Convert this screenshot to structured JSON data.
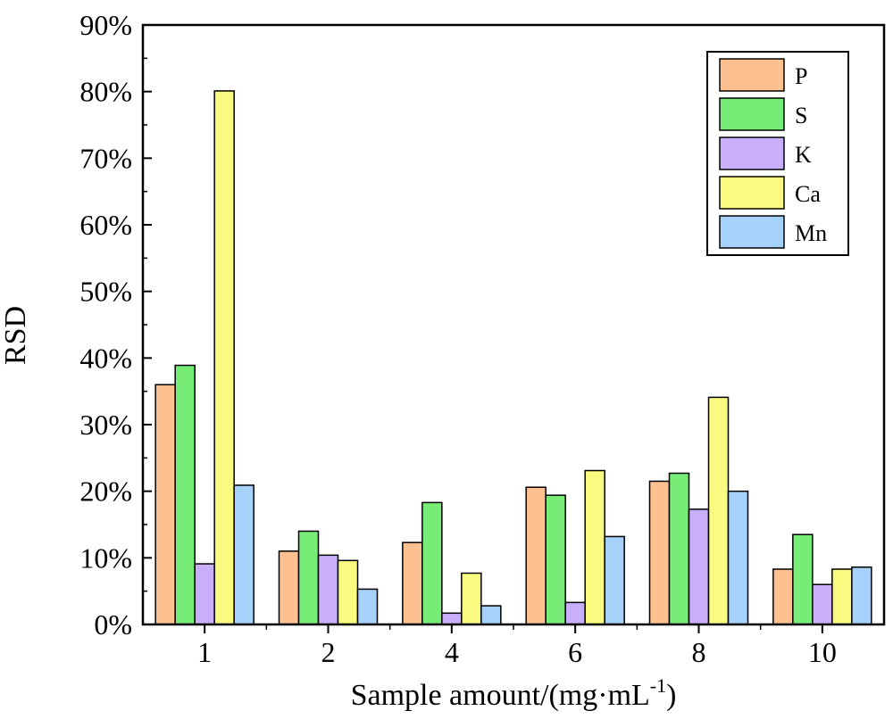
{
  "chart_data": {
    "type": "bar",
    "categories": [
      "1",
      "2",
      "4",
      "6",
      "8",
      "10"
    ],
    "series": [
      {
        "name": "P",
        "color": "#FDC191",
        "values": [
          36.0,
          11.0,
          12.3,
          20.6,
          21.5,
          8.3
        ]
      },
      {
        "name": "S",
        "color": "#77ED77",
        "values": [
          38.9,
          14.0,
          18.3,
          19.4,
          22.7,
          13.5
        ]
      },
      {
        "name": "K",
        "color": "#C9AEF9",
        "values": [
          9.1,
          10.4,
          1.7,
          3.3,
          17.3,
          6.0
        ]
      },
      {
        "name": "Ca",
        "color": "#FAFA80",
        "values": [
          80.1,
          9.6,
          7.7,
          23.1,
          34.1,
          8.3
        ]
      },
      {
        "name": "Mn",
        "color": "#A5D1FB",
        "values": [
          20.9,
          5.3,
          2.8,
          13.2,
          20.0,
          8.6
        ]
      }
    ],
    "xlabel": "Sample amount/(mg·mL",
    "xlabel_sup": "-1",
    "xlabel_end": ")",
    "ylabel": "RSD",
    "ylim": [
      0,
      90
    ],
    "yticks": [
      "0%",
      "10%",
      "20%",
      "30%",
      "40%",
      "50%",
      "60%",
      "70%",
      "80%",
      "90%"
    ],
    "grid": false,
    "legend_position": "top-right"
  }
}
